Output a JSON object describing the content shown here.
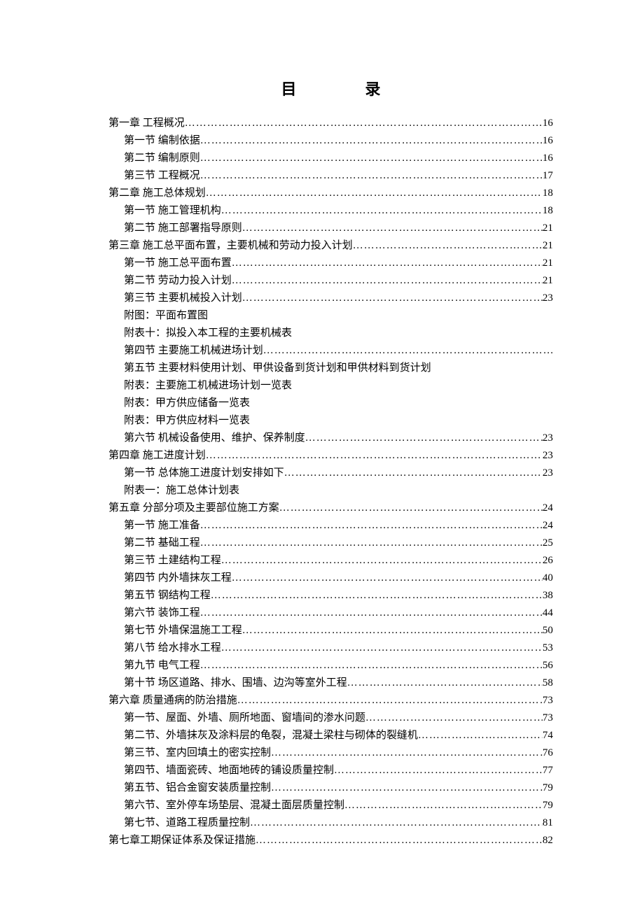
{
  "title": {
    "char1": "目",
    "char2": "录"
  },
  "toc": [
    {
      "label": "第一章 工程概况",
      "page": "16",
      "indent": 0,
      "hasPage": true
    },
    {
      "label": "第一节 编制依据",
      "page": "16",
      "indent": 1,
      "hasPage": true
    },
    {
      "label": "第二节 编制原则",
      "page": "16",
      "indent": 1,
      "hasPage": true
    },
    {
      "label": "第三节 工程概况",
      "page": "17",
      "indent": 1,
      "hasPage": true
    },
    {
      "label": "第二章 施工总体规划",
      "page": "18",
      "indent": 0,
      "hasPage": true
    },
    {
      "label": "第一节 施工管理机构",
      "page": "18",
      "indent": 1,
      "hasPage": true
    },
    {
      "label": "第二节 施工部署指导原则",
      "page": "21",
      "indent": 1,
      "hasPage": true
    },
    {
      "label": "第三章 施工总平面布置，主要机械和劳动力投入计划",
      "page": "21",
      "indent": 0,
      "hasPage": true
    },
    {
      "label": "第一节 施工总平面布置",
      "page": "21",
      "indent": 1,
      "hasPage": true
    },
    {
      "label": "第二节 劳动力投入计划",
      "page": "21",
      "indent": 1,
      "hasPage": true
    },
    {
      "label": "第三节 主要机械投入计划",
      "page": "23",
      "indent": 1,
      "hasPage": true
    },
    {
      "label": "附图：平面布置图",
      "page": "",
      "indent": 1,
      "hasPage": false
    },
    {
      "label": "附表十：拟投入本工程的主要机械表",
      "page": "",
      "indent": 1,
      "hasPage": false
    },
    {
      "label": "第四节 主要施工机械进场计划",
      "page": "",
      "indent": 1,
      "hasPage": true
    },
    {
      "label": "第五节 主要材料使用计划、甲供设备到货计划和甲供材料到货计划",
      "page": "",
      "indent": 1,
      "hasPage": false
    },
    {
      "label": "附表：主要施工机械进场计划一览表",
      "page": "",
      "indent": 1,
      "hasPage": false
    },
    {
      "label": "附表：甲方供应储备一览表",
      "page": "",
      "indent": 1,
      "hasPage": false
    },
    {
      "label": "附表：甲方供应材料一览表",
      "page": "",
      "indent": 1,
      "hasPage": false
    },
    {
      "label": "第六节 机械设备使用、维护、保养制度",
      "page": "23",
      "indent": 1,
      "hasPage": true
    },
    {
      "label": "第四章 施工进度计划",
      "page": "23",
      "indent": 0,
      "hasPage": true
    },
    {
      "label": "第一节 总体施工进度计划安排如下",
      "page": "23",
      "indent": 1,
      "hasPage": true
    },
    {
      "label": "附表一：施工总体计划表",
      "page": "",
      "indent": 1,
      "hasPage": false
    },
    {
      "label": "第五章  分部分项及主要部位施工方案",
      "page": "24",
      "indent": 0,
      "hasPage": true
    },
    {
      "label": "第一节 施工准备",
      "page": "24",
      "indent": 1,
      "hasPage": true
    },
    {
      "label": "第二节 基础工程",
      "page": "25",
      "indent": 1,
      "hasPage": true
    },
    {
      "label": "第三节 土建结构工程",
      "page": "26",
      "indent": 1,
      "hasPage": true
    },
    {
      "label": "第四节 内外墙抹灰工程",
      "page": "40",
      "indent": 1,
      "hasPage": true
    },
    {
      "label": "第五节 钢结构工程",
      "page": "38",
      "indent": 1,
      "hasPage": true
    },
    {
      "label": "第六节 装饰工程",
      "page": "44",
      "indent": 1,
      "hasPage": true
    },
    {
      "label": "第七节 外墙保温施工工程",
      "page": "50",
      "indent": 1,
      "hasPage": true
    },
    {
      "label": "第八节 给水排水工程",
      "page": "53",
      "indent": 1,
      "hasPage": true
    },
    {
      "label": "第九节 电气工程",
      "page": "56",
      "indent": 1,
      "hasPage": true
    },
    {
      "label": "第十节 场区道路、排水、围墙、边沟等室外工程",
      "page": "58",
      "indent": 1,
      "hasPage": true
    },
    {
      "label": "第六章 质量通病的防治措施",
      "page": "73",
      "indent": 0,
      "hasPage": true
    },
    {
      "label": "第一节、屋面、外墙、厕所地面、窗墙间的渗水问题",
      "page": "73",
      "indent": 1,
      "hasPage": true
    },
    {
      "label": "第二节、外墙抹灰及涂料层的龟裂，混凝土梁柱与砌体的裂缝机",
      "page": "74",
      "indent": 1,
      "hasPage": true
    },
    {
      "label": "第三节、室内回填土的密实控制",
      "page": "76",
      "indent": 1,
      "hasPage": true
    },
    {
      "label": "第四节、墙面瓷砖、地面地砖的铺设质量控制",
      "page": "77",
      "indent": 1,
      "hasPage": true
    },
    {
      "label": "第五节、铝合金窗安装质量控制",
      "page": "79",
      "indent": 1,
      "hasPage": true
    },
    {
      "label": "第六节、室外停车场垫层、混凝土面层质量控制",
      "page": "79",
      "indent": 1,
      "hasPage": true
    },
    {
      "label": "第七节、道路工程质量控制",
      "page": "81",
      "indent": 1,
      "hasPage": true
    },
    {
      "label": "第七章工期保证体系及保证措施",
      "page": "82",
      "indent": 0,
      "hasPage": true
    }
  ]
}
